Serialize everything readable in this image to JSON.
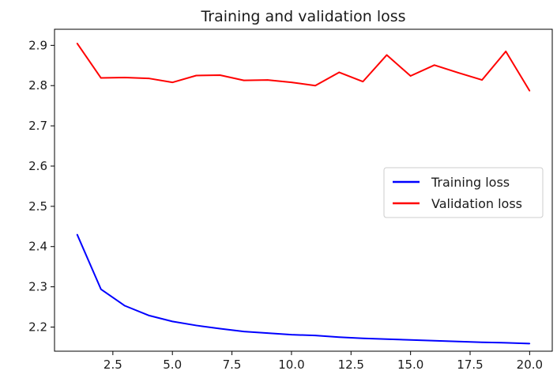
{
  "chart_data": {
    "type": "line",
    "title": "Training and validation loss",
    "xlabel": "",
    "ylabel": "",
    "xlim": [
      0.05,
      20.95
    ],
    "ylim": [
      2.14,
      2.94
    ],
    "grid": false,
    "legend_position": "center-right",
    "x_ticks": [
      2.5,
      5.0,
      7.5,
      10.0,
      12.5,
      15.0,
      17.5,
      20.0
    ],
    "x_tick_labels": [
      "2.5",
      "5.0",
      "7.5",
      "10.0",
      "12.5",
      "15.0",
      "17.5",
      "20.0"
    ],
    "y_ticks": [
      2.2,
      2.3,
      2.4,
      2.5,
      2.6,
      2.7,
      2.8,
      2.9
    ],
    "y_tick_labels": [
      "2.2",
      "2.3",
      "2.4",
      "2.5",
      "2.6",
      "2.7",
      "2.8",
      "2.9"
    ],
    "x": [
      1,
      2,
      3,
      4,
      5,
      6,
      7,
      8,
      9,
      10,
      11,
      12,
      13,
      14,
      15,
      16,
      17,
      18,
      19,
      20
    ],
    "series": [
      {
        "name": "Training loss",
        "color": "#0000ff",
        "values": [
          2.43,
          2.294,
          2.253,
          2.229,
          2.214,
          2.204,
          2.196,
          2.189,
          2.185,
          2.181,
          2.179,
          2.175,
          2.172,
          2.17,
          2.168,
          2.166,
          2.164,
          2.162,
          2.161,
          2.159
        ]
      },
      {
        "name": "Validation loss",
        "color": "#ff0000",
        "values": [
          2.905,
          2.819,
          2.82,
          2.818,
          2.808,
          2.825,
          2.826,
          2.813,
          2.814,
          2.808,
          2.8,
          2.833,
          2.81,
          2.876,
          2.824,
          2.851,
          2.832,
          2.814,
          2.885,
          2.787
        ]
      }
    ]
  }
}
